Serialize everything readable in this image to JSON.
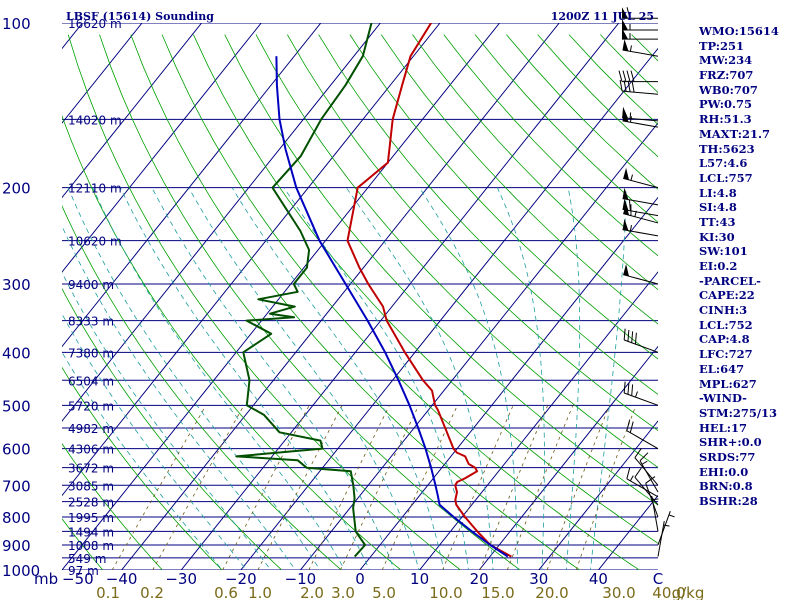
{
  "header": {
    "station": "LBSF (15614) Sounding",
    "time": "1200Z 11 JUL 25"
  },
  "indices": [
    "WMO:15614",
    "TP:251",
    "MW:234",
    "FRZ:707",
    "WB0:707",
    "PW:0.75",
    "RH:51.3",
    "MAXT:21.7",
    "TH:5623",
    "L57:4.6",
    "LCL:757",
    "LI:4.8",
    "SI:4.8",
    "TT:43",
    "KI:30",
    "SW:101",
    "EI:0.2",
    "-PARCEL-",
    "CAPE:22",
    "CINH:3",
    "LCL:752",
    "CAP:4.8",
    "LFC:727",
    "EL:647",
    "MPL:627",
    "-WIND-",
    "STM:275/13",
    "HEL:17",
    "SHR+:0.0",
    "SRDS:77",
    "EHI:0.0",
    "BRN:0.8",
    "BSHR:28"
  ],
  "colors": {
    "isobar": "#000080",
    "isotherm": "#000080",
    "dry_adiabat": "#00a000",
    "moist_adiabat": "#1e9e9e",
    "mixing_ratio": "#6b5b16",
    "temperature": "#c00000",
    "dewpoint": "#005000",
    "parcel": "#0000c0",
    "wind_barb": "#000000"
  },
  "chart_data": {
    "type": "skew-t log-p",
    "y_axis": {
      "unit": "mb",
      "log_scale": true,
      "ylim": [
        1000,
        100
      ],
      "ticks": [
        100,
        200,
        300,
        400,
        500,
        600,
        700,
        800,
        900,
        1000
      ]
    },
    "x_axis": {
      "unit": "C",
      "xlim_at_1000mb": [
        -50,
        50
      ],
      "ticks": [
        -50,
        -40,
        -30,
        -20,
        -10,
        0,
        10,
        20,
        30,
        40
      ],
      "tick_labels": [
        "−50",
        "−40",
        "−30",
        "−20",
        "−10",
        "0",
        "10",
        "20",
        "30",
        "40",
        "C"
      ]
    },
    "height_labels": [
      {
        "p": 100,
        "label": "16620 m"
      },
      {
        "p": 150,
        "label": "14020 m"
      },
      {
        "p": 200,
        "label": "12110 m"
      },
      {
        "p": 250,
        "label": "10620 m"
      },
      {
        "p": 300,
        "label": "9400 m"
      },
      {
        "p": 350,
        "label": "8333 m"
      },
      {
        "p": 400,
        "label": "7380 m"
      },
      {
        "p": 450,
        "label": "6504 m"
      },
      {
        "p": 500,
        "label": "5720 m"
      },
      {
        "p": 550,
        "label": "4982 m"
      },
      {
        "p": 600,
        "label": "4306 m"
      },
      {
        "p": 650,
        "label": "3672 m"
      },
      {
        "p": 700,
        "label": "3085 m"
      },
      {
        "p": 750,
        "label": "2528 m"
      },
      {
        "p": 800,
        "label": "1995 m"
      },
      {
        "p": 850,
        "label": "1494 m"
      },
      {
        "p": 900,
        "label": "1008 m"
      },
      {
        "p": 950,
        "label": "549 m"
      },
      {
        "p": 1000,
        "label": "97 m"
      }
    ],
    "mixing_ratio_labels": [
      "0.1",
      "0.2",
      "0.6",
      "1.0",
      "2.0",
      "3.0",
      "5.0",
      "10.0",
      "15.0",
      "20.0",
      "30.0",
      "40.0",
      "g/kg"
    ],
    "series": [
      {
        "name": "Temperature",
        "points": [
          [
            945,
            23.6
          ],
          [
            900,
            18.5
          ],
          [
            850,
            14.5
          ],
          [
            800,
            10.5
          ],
          [
            760,
            7.4
          ],
          [
            745,
            6.6
          ],
          [
            720,
            5.8
          ],
          [
            700,
            4.6
          ],
          [
            690,
            4.5
          ],
          [
            680,
            5.3
          ],
          [
            660,
            6.4
          ],
          [
            650,
            5.6
          ],
          [
            640,
            4.0
          ],
          [
            620,
            2.4
          ],
          [
            610,
            0.5
          ],
          [
            600,
            -0.6
          ],
          [
            560,
            -3.9
          ],
          [
            510,
            -8.4
          ],
          [
            500,
            -9.5
          ],
          [
            470,
            -12.0
          ],
          [
            450,
            -14.9
          ],
          [
            400,
            -21.7
          ],
          [
            350,
            -29.0
          ],
          [
            330,
            -31.5
          ],
          [
            300,
            -37.0
          ],
          [
            280,
            -40.7
          ],
          [
            250,
            -46.3
          ],
          [
            200,
            -51.7
          ],
          [
            180,
            -50.0
          ],
          [
            150,
            -55.0
          ],
          [
            130,
            -58.0
          ],
          [
            115,
            -60.5
          ],
          [
            100,
            -61.5
          ]
        ]
      },
      {
        "name": "Dewpoint",
        "points": [
          [
            945,
            -2.7
          ],
          [
            900,
            -2.5
          ],
          [
            850,
            -5.9
          ],
          [
            800,
            -8.1
          ],
          [
            770,
            -9.5
          ],
          [
            740,
            -10.5
          ],
          [
            700,
            -12.5
          ],
          [
            660,
            -14.8
          ],
          [
            650,
            -22.7
          ],
          [
            630,
            -25.2
          ],
          [
            620,
            -36.0
          ],
          [
            600,
            -22.6
          ],
          [
            580,
            -24.0
          ],
          [
            560,
            -32.0
          ],
          [
            520,
            -37.0
          ],
          [
            500,
            -41.1
          ],
          [
            450,
            -44.0
          ],
          [
            400,
            -48.8
          ],
          [
            370,
            -46.6
          ],
          [
            350,
            -52.5
          ],
          [
            345,
            -45.0
          ],
          [
            340,
            -49.5
          ],
          [
            330,
            -46.3
          ],
          [
            320,
            -53.4
          ],
          [
            310,
            -47.8
          ],
          [
            300,
            -49.5
          ],
          [
            280,
            -49.5
          ],
          [
            260,
            -51.5
          ],
          [
            240,
            -55.5
          ],
          [
            200,
            -66.0
          ],
          [
            175,
            -65.5
          ],
          [
            150,
            -67.0
          ],
          [
            130,
            -67.5
          ],
          [
            115,
            -68.5
          ],
          [
            100,
            -71.5
          ]
        ]
      },
      {
        "name": "Parcel",
        "points": [
          [
            945,
            23.0
          ],
          [
            900,
            18.5
          ],
          [
            850,
            13.6
          ],
          [
            800,
            8.6
          ],
          [
            760,
            4.6
          ],
          [
            730,
            3.0
          ],
          [
            700,
            1.3
          ],
          [
            650,
            -1.8
          ],
          [
            600,
            -5.3
          ],
          [
            550,
            -9.3
          ],
          [
            500,
            -13.8
          ],
          [
            450,
            -19.0
          ],
          [
            400,
            -25.0
          ],
          [
            350,
            -32.2
          ],
          [
            300,
            -40.8
          ],
          [
            250,
            -51.0
          ],
          [
            200,
            -62.0
          ],
          [
            170,
            -69.0
          ],
          [
            150,
            -74.0
          ],
          [
            130,
            -79.0
          ],
          [
            115,
            -83.0
          ]
        ]
      }
    ],
    "wind_profile": [
      {
        "p": 98,
        "dir": 270,
        "kt": 60
      },
      {
        "p": 103,
        "dir": 270,
        "kt": 55
      },
      {
        "p": 107,
        "dir": 270,
        "kt": 55
      },
      {
        "p": 115,
        "dir": 280,
        "kt": 55
      },
      {
        "p": 128,
        "dir": 270,
        "kt": 40
      },
      {
        "p": 135,
        "dir": 275,
        "kt": 40
      },
      {
        "p": 151,
        "dir": 275,
        "kt": 55
      },
      {
        "p": 155,
        "dir": 280,
        "kt": 55
      },
      {
        "p": 200,
        "dir": 285,
        "kt": 55
      },
      {
        "p": 215,
        "dir": 280,
        "kt": 50
      },
      {
        "p": 225,
        "dir": 280,
        "kt": 60
      },
      {
        "p": 232,
        "dir": 285,
        "kt": 65
      },
      {
        "p": 245,
        "dir": 280,
        "kt": 55
      },
      {
        "p": 300,
        "dir": 285,
        "kt": 50
      },
      {
        "p": 400,
        "dir": 290,
        "kt": 40
      },
      {
        "p": 500,
        "dir": 290,
        "kt": 35
      },
      {
        "p": 600,
        "dir": 300,
        "kt": 20
      },
      {
        "p": 700,
        "dir": 320,
        "kt": 10
      },
      {
        "p": 720,
        "dir": 330,
        "kt": 15
      },
      {
        "p": 735,
        "dir": 300,
        "kt": 15
      },
      {
        "p": 760,
        "dir": 320,
        "kt": 10
      },
      {
        "p": 800,
        "dir": 340,
        "kt": 10
      },
      {
        "p": 850,
        "dir": 350,
        "kt": 5
      },
      {
        "p": 900,
        "dir": 20,
        "kt": 5
      },
      {
        "p": 945,
        "dir": 10,
        "kt": 5
      }
    ]
  }
}
